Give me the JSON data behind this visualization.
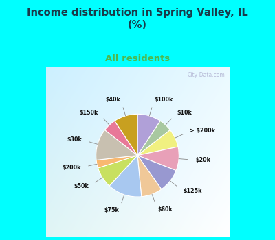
{
  "title": "Income distribution in Spring Valley, IL\n(%)",
  "subtitle": "All residents",
  "title_color": "#1a3a4a",
  "subtitle_color": "#4db84d",
  "background_top": "#00ffff",
  "labels": [
    "$100k",
    "$10k",
    "> $200k",
    "$20k",
    "$125k",
    "$60k",
    "$75k",
    "$50k",
    "$200k",
    "$30k",
    "$150k",
    "$40k"
  ],
  "values": [
    9,
    5,
    7,
    9,
    9,
    8,
    13,
    8,
    3,
    12,
    5,
    9
  ],
  "colors": [
    "#b0a0d8",
    "#a8c8a0",
    "#f0f080",
    "#e8a0b8",
    "#9898d0",
    "#f0c898",
    "#a8c8f0",
    "#c8e060",
    "#f8b870",
    "#c8c0b0",
    "#e87898",
    "#c8a020"
  ],
  "figsize": [
    4.0,
    3.5
  ],
  "dpi": 100
}
